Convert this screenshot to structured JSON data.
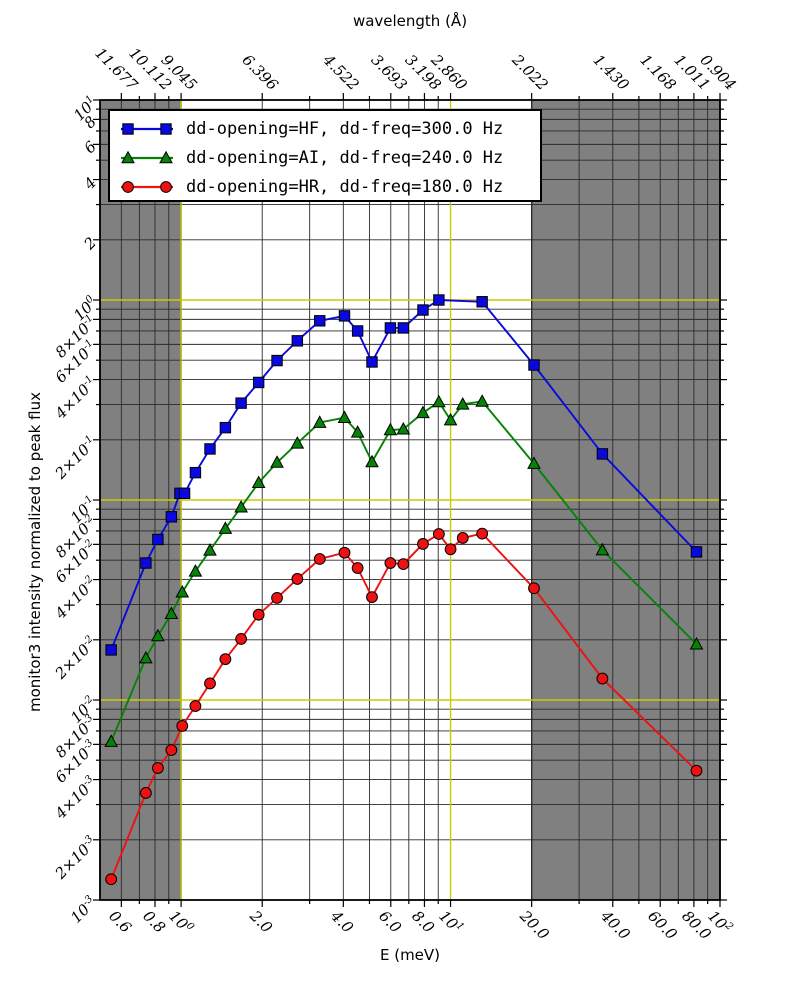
{
  "figure": {
    "top_axis_title": "wavelength (Å)",
    "x_axis_title": "E (meV)",
    "y_axis_title": "monitor3 intensity normalized to peak flux"
  },
  "chart_data": {
    "type": "line",
    "title": "",
    "xlabel": "E (meV)",
    "ylabel": "monitor3 intensity normalized to peak flux",
    "top_axis_label": "wavelength (Å)",
    "x_scale": "log",
    "y_scale": "log",
    "xlim": [
      0.5,
      100
    ],
    "ylim": [
      0.001,
      10
    ],
    "grid": "on",
    "legend_position": "upper left",
    "colors": {
      "band": "#808080",
      "band_edge": "#1a1a1a",
      "grid_minor": "#2a2a2a",
      "grid_decade": "#cbcb00",
      "spine": "#000000"
    },
    "shaded_bands_x": [
      [
        0.5,
        1.0
      ],
      [
        20,
        100
      ]
    ],
    "x_grid_decade": [
      1,
      10
    ],
    "y_grid_decade": [
      0.01,
      0.1,
      1
    ],
    "x_grid_minor": [
      0.6,
      0.7,
      0.8,
      0.9,
      2,
      3,
      4,
      5,
      6,
      7,
      8,
      9,
      20,
      30,
      40,
      50,
      60,
      70,
      80,
      90
    ],
    "y_grid_minor": [
      0.002,
      0.003,
      0.004,
      0.005,
      0.006,
      0.007,
      0.008,
      0.009,
      0.02,
      0.03,
      0.04,
      0.05,
      0.06,
      0.07,
      0.08,
      0.09,
      0.2,
      0.3,
      0.4,
      0.5,
      0.6,
      0.7,
      0.8,
      0.9,
      2,
      3,
      4,
      5,
      6,
      7,
      8,
      9
    ],
    "x_ticks": [
      {
        "value": 0.6,
        "label": "0.6"
      },
      {
        "value": 0.8,
        "label": "0.8"
      },
      {
        "value": 1,
        "label": "10^0"
      },
      {
        "value": 2,
        "label": "2.0"
      },
      {
        "value": 4,
        "label": "4.0"
      },
      {
        "value": 6,
        "label": "6.0"
      },
      {
        "value": 8,
        "label": "8.0"
      },
      {
        "value": 10,
        "label": "10^1"
      },
      {
        "value": 20,
        "label": "20.0"
      },
      {
        "value": 40,
        "label": "40.0"
      },
      {
        "value": 60,
        "label": "60.0"
      },
      {
        "value": 80,
        "label": "80.0"
      },
      {
        "value": 100,
        "label": "10^2"
      }
    ],
    "top_ticks": [
      {
        "value": 0.6,
        "label": "11.677"
      },
      {
        "value": 0.8,
        "label": "10.112"
      },
      {
        "value": 1,
        "label": "9.045"
      },
      {
        "value": 2,
        "label": "6.396"
      },
      {
        "value": 4,
        "label": "4.522"
      },
      {
        "value": 6,
        "label": "3.693"
      },
      {
        "value": 8,
        "label": "3.198"
      },
      {
        "value": 10,
        "label": "2.860"
      },
      {
        "value": 20,
        "label": "2.022"
      },
      {
        "value": 40,
        "label": "1.430"
      },
      {
        "value": 60,
        "label": "1.168"
      },
      {
        "value": 80,
        "label": "1.011"
      },
      {
        "value": 100,
        "label": "0.904"
      }
    ],
    "y_ticks": [
      {
        "value": 10,
        "label": "10^1"
      },
      {
        "value": 8,
        "label": "8"
      },
      {
        "value": 6,
        "label": "6"
      },
      {
        "value": 4,
        "label": "4"
      },
      {
        "value": 2,
        "label": "2"
      },
      {
        "value": 1,
        "label": "10^0"
      },
      {
        "value": 0.8,
        "label": "8×10^-1"
      },
      {
        "value": 0.6,
        "label": "6×10^-1"
      },
      {
        "value": 0.4,
        "label": "4×10^-1"
      },
      {
        "value": 0.2,
        "label": "2×10^-1"
      },
      {
        "value": 0.1,
        "label": "10^-1"
      },
      {
        "value": 0.08,
        "label": "8×10^-2"
      },
      {
        "value": 0.06,
        "label": "6×10^-2"
      },
      {
        "value": 0.04,
        "label": "4×10^-2"
      },
      {
        "value": 0.02,
        "label": "2×10^-2"
      },
      {
        "value": 0.01,
        "label": "10^-2"
      },
      {
        "value": 0.008,
        "label": "8×10^-3"
      },
      {
        "value": 0.006,
        "label": "6×10^-3"
      },
      {
        "value": 0.004,
        "label": "4×10^-3"
      },
      {
        "value": 0.002,
        "label": "2×10^-3"
      },
      {
        "value": 0.001,
        "label": "10^-3"
      }
    ],
    "series": [
      {
        "name": "HF",
        "label": "dd-opening=HF, dd-freq=300.0 Hz",
        "color": "#0909dd",
        "marker": "square",
        "x": [
          0.55,
          0.74,
          0.82,
          0.92,
          0.99,
          1.03,
          1.13,
          1.28,
          1.46,
          1.67,
          1.94,
          2.27,
          2.7,
          3.27,
          4.04,
          4.52,
          5.11,
          5.98,
          6.68,
          7.9,
          9.05,
          13.1,
          20.4,
          36.6,
          81.8
        ],
        "y": [
          0.0178,
          0.0484,
          0.0635,
          0.0824,
          0.108,
          0.108,
          0.137,
          0.18,
          0.23,
          0.305,
          0.387,
          0.498,
          0.625,
          0.787,
          0.833,
          0.7,
          0.49,
          0.725,
          0.725,
          0.891,
          1.0,
          0.98,
          0.473,
          0.17,
          0.055
        ]
      },
      {
        "name": "AI",
        "label": "dd-opening=AI, dd-freq=240.0 Hz",
        "color": "#068206",
        "marker": "triangle",
        "x": [
          0.55,
          0.74,
          0.82,
          0.92,
          1.01,
          1.13,
          1.28,
          1.46,
          1.67,
          1.94,
          2.27,
          2.7,
          3.27,
          4.04,
          4.52,
          5.11,
          5.98,
          6.68,
          7.9,
          9.05,
          10.0,
          11.1,
          13.1,
          20.4,
          36.6,
          81.8
        ],
        "y": [
          0.0062,
          0.0162,
          0.0209,
          0.027,
          0.0346,
          0.044,
          0.056,
          0.072,
          0.092,
          0.122,
          0.154,
          0.192,
          0.244,
          0.258,
          0.218,
          0.155,
          0.224,
          0.226,
          0.273,
          0.309,
          0.251,
          0.301,
          0.311,
          0.152,
          0.0562,
          0.019
        ]
      },
      {
        "name": "HR",
        "label": "dd-opening=HR, dd-freq=180.0 Hz",
        "color": "#ee1111",
        "marker": "circle",
        "x": [
          0.55,
          0.74,
          0.82,
          0.92,
          1.01,
          1.13,
          1.28,
          1.46,
          1.67,
          1.94,
          2.27,
          2.7,
          3.27,
          4.04,
          4.52,
          5.11,
          5.98,
          6.68,
          7.9,
          9.05,
          10.0,
          11.1,
          13.1,
          20.4,
          36.6,
          81.8
        ],
        "y": [
          0.00127,
          0.00343,
          0.00457,
          0.00562,
          0.00742,
          0.00933,
          0.0121,
          0.016,
          0.0202,
          0.0267,
          0.0324,
          0.0403,
          0.0507,
          0.0545,
          0.0457,
          0.0327,
          0.0484,
          0.0478,
          0.0603,
          0.0676,
          0.0567,
          0.0646,
          0.0679,
          0.0362,
          0.0128,
          0.00443
        ]
      }
    ]
  }
}
